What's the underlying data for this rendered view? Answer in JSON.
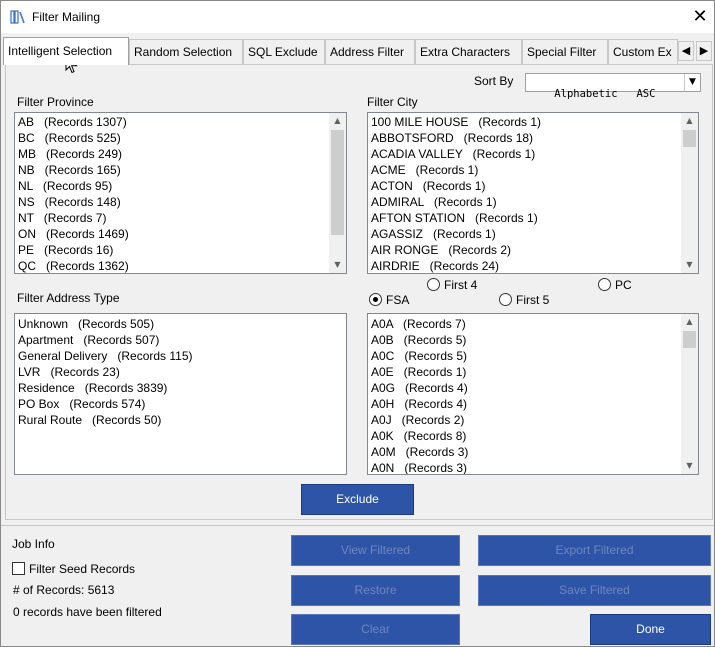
{
  "window": {
    "title": "Filter Mailing"
  },
  "tabs": [
    {
      "label": "Intelligent Selection",
      "active": true
    },
    {
      "label": "Random Selection"
    },
    {
      "label": "SQL Exclude"
    },
    {
      "label": "Address Filter"
    },
    {
      "label": "Extra Characters"
    },
    {
      "label": "Special Filter"
    },
    {
      "label": "Custom Ex"
    }
  ],
  "sort": {
    "label": "Sort By",
    "value": "Alphabetic   ASC"
  },
  "province": {
    "label": "Filter Province",
    "items": [
      "AB   (Records 1307)",
      "BC   (Records 525)",
      "MB   (Records 249)",
      "NB   (Records 165)",
      "NL   (Records 95)",
      "NS   (Records 148)",
      "NT   (Records 7)",
      "ON   (Records 1469)",
      "PE   (Records 16)",
      "QC   (Records 1362)"
    ]
  },
  "city": {
    "label": "Filter City",
    "items": [
      "100 MILE HOUSE   (Records 1)",
      "ABBOTSFORD   (Records 18)",
      "ACADIA VALLEY   (Records 1)",
      "ACME   (Records 1)",
      "ACTON   (Records 1)",
      "ADMIRAL   (Records 1)",
      "AFTON STATION   (Records 1)",
      "AGASSIZ   (Records 1)",
      "AIR RONGE   (Records 2)",
      "AIRDRIE   (Records 24)"
    ]
  },
  "address_type": {
    "label": "Filter Address Type",
    "items": [
      "Unknown   (Records 505)",
      "Apartment   (Records 507)",
      "General Delivery   (Records 115)",
      "LVR   (Records 23)",
      "Residence   (Records 3839)",
      "PO Box   (Records 574)",
      "Rural Route   (Records 50)"
    ]
  },
  "postal_options": {
    "first4": "First 4",
    "pc": "PC",
    "fsa": "FSA",
    "first5": "First 5",
    "selected": "FSA"
  },
  "fsa": {
    "items": [
      "A0A   (Records 7)",
      "A0B   (Records 5)",
      "A0C   (Records 5)",
      "A0E   (Records 1)",
      "A0G   (Records 4)",
      "A0H   (Records 4)",
      "A0J   (Records 2)",
      "A0K   (Records 8)",
      "A0M   (Records 3)",
      "A0N   (Records 3)"
    ]
  },
  "exclude_button": "Exclude",
  "job_info": {
    "title": "Job Info",
    "filter_seed_label": "Filter Seed Records",
    "filter_seed_checked": false,
    "records_label": "# of Records:  5613",
    "filtered_status": "0 records have been filtered"
  },
  "actions": {
    "view_filtered": "View Filtered",
    "export_filtered": "Export Filtered",
    "restore": "Restore",
    "save_filtered": "Save Filtered",
    "clear": "Clear",
    "done": "Done"
  },
  "colors": {
    "button_blue": "#2e54a8",
    "disabled_text": "#6f86bd"
  },
  "icons": {
    "app": "books-icon",
    "close": "close-icon",
    "tab_left": "arrow-left-icon",
    "tab_right": "arrow-right-icon",
    "cursor": "mouse-pointer-icon"
  }
}
